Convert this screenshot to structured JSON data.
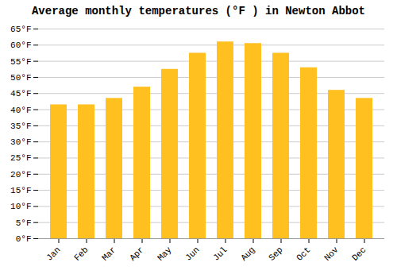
{
  "chart_data": {
    "type": "bar",
    "title": "Average monthly temperatures (°F ) in Newton Abbot",
    "categories": [
      "Jan",
      "Feb",
      "Mar",
      "Apr",
      "May",
      "Jun",
      "Jul",
      "Aug",
      "Sep",
      "Oct",
      "Nov",
      "Dec"
    ],
    "values": [
      41.5,
      41.5,
      43.5,
      47.0,
      52.5,
      57.5,
      61.0,
      60.5,
      57.5,
      53.0,
      46.0,
      43.5
    ],
    "color": "#FFC020",
    "ylim": [
      0,
      65
    ],
    "yticks": [
      {
        "value": 0,
        "label": "0°F"
      },
      {
        "value": 5,
        "label": "5°F"
      },
      {
        "value": 10,
        "label": "10°F"
      },
      {
        "value": 15,
        "label": "15°F"
      },
      {
        "value": 20,
        "label": "20°F"
      },
      {
        "value": 25,
        "label": "25°F"
      },
      {
        "value": 30,
        "label": "30°F"
      },
      {
        "value": 35,
        "label": "35°F"
      },
      {
        "value": 40,
        "label": "40°F"
      },
      {
        "value": 45,
        "label": "45°F"
      },
      {
        "value": 50,
        "label": "50°F"
      },
      {
        "value": 55,
        "label": "55°F"
      },
      {
        "value": 60,
        "label": "60°F"
      },
      {
        "value": 65,
        "label": "65°F"
      }
    ],
    "grid": true
  }
}
